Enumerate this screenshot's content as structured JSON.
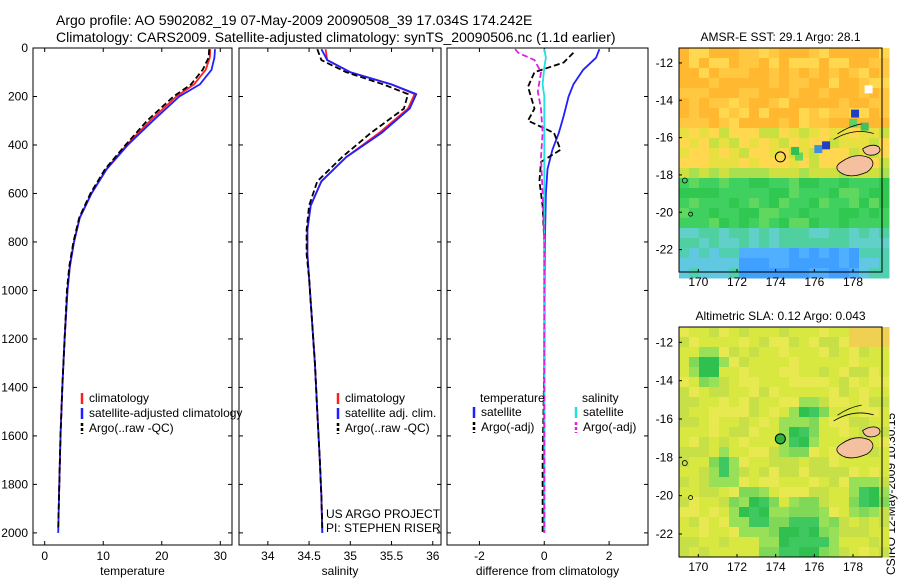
{
  "header": {
    "line1": "Argo profile: AO 5902082_19 07-May-2009 20090508_39 17.034S 174.242E",
    "line2": "Climatology: CARS2009. Satellite-adjusted climatology: synTS_20090506.nc (1.1d earlier)"
  },
  "credit": "CSIRO 12-May-2009 10:30:15",
  "project": {
    "line1": "US ARGO PROJECT",
    "line2": "PI: STEPHEN RISER"
  },
  "colors": {
    "climatology": "#ff2020",
    "satellite": "#1f1fff",
    "argo": "#000000",
    "sat_salinity": "#20e0e0",
    "argo_salinity": "#e020e0"
  },
  "chart_data": [
    {
      "type": "line",
      "id": "temperature",
      "xlabel": "temperature",
      "ylabel": "",
      "xlim": [
        -2,
        32
      ],
      "ylim": [
        2050,
        0
      ],
      "xticks": [
        0,
        10,
        20,
        30
      ],
      "yticks": [
        0,
        200,
        400,
        600,
        800,
        1000,
        1200,
        1400,
        1600,
        1800,
        2000
      ],
      "series": [
        {
          "name": "climatology",
          "color": "#ff2020",
          "dash": "",
          "points": [
            [
              28.3,
              5
            ],
            [
              28.2,
              40
            ],
            [
              27.5,
              90
            ],
            [
              25.5,
              150
            ],
            [
              22.5,
              200
            ],
            [
              18,
              300
            ],
            [
              14,
              400
            ],
            [
              10.5,
              500
            ],
            [
              8,
              600
            ],
            [
              6,
              700
            ],
            [
              5,
              800
            ],
            [
              4.3,
              900
            ],
            [
              3.9,
              1000
            ],
            [
              3.4,
              1200
            ],
            [
              3.0,
              1400
            ],
            [
              2.7,
              1600
            ],
            [
              2.5,
              1800
            ],
            [
              2.4,
              1860
            ]
          ]
        },
        {
          "name": "satellite-adjusted climatology",
          "color": "#1f1fff",
          "dash": "",
          "points": [
            [
              29.1,
              5
            ],
            [
              29.0,
              40
            ],
            [
              28.5,
              90
            ],
            [
              26.5,
              150
            ],
            [
              23,
              200
            ],
            [
              18.5,
              300
            ],
            [
              14.2,
              400
            ],
            [
              10.6,
              500
            ],
            [
              8,
              600
            ],
            [
              6,
              700
            ],
            [
              5,
              800
            ],
            [
              4.3,
              900
            ],
            [
              3.9,
              1000
            ],
            [
              3.4,
              1200
            ],
            [
              3.0,
              1400
            ],
            [
              2.7,
              1600
            ],
            [
              2.5,
              1800
            ],
            [
              2.3,
              2000
            ]
          ]
        },
        {
          "name": "Argo(..raw -QC)",
          "color": "#000000",
          "dash": "6,3",
          "points": [
            [
              28.1,
              5
            ],
            [
              28.0,
              40
            ],
            [
              27.0,
              90
            ],
            [
              25,
              150
            ],
            [
              22,
              200
            ],
            [
              17.5,
              300
            ],
            [
              13.8,
              400
            ],
            [
              10.3,
              500
            ],
            [
              7.8,
              600
            ],
            [
              5.9,
              700
            ],
            [
              4.9,
              800
            ],
            [
              4.2,
              900
            ],
            [
              3.8,
              1000
            ],
            [
              3.4,
              1200
            ],
            [
              3.0,
              1400
            ],
            [
              2.7,
              1600
            ],
            [
              2.5,
              1800
            ],
            [
              2.3,
              1980
            ]
          ]
        }
      ],
      "legend": {
        "placement": "lower-right",
        "labels": [
          "climatology",
          "satellite-adjusted climatology",
          "Argo(..raw -QC)"
        ]
      }
    },
    {
      "type": "line",
      "id": "salinity",
      "xlabel": "salinity",
      "ylabel": "",
      "xlim": [
        33.65,
        36.1
      ],
      "ylim": [
        2050,
        0
      ],
      "xticks": [
        34,
        34.5,
        35,
        35.5,
        36
      ],
      "xtick_labels": [
        "34",
        "34.5",
        "35",
        "35.5",
        "36"
      ],
      "series": [
        {
          "name": "climatology",
          "color": "#ff2020",
          "dash": "",
          "points": [
            [
              34.7,
              5
            ],
            [
              34.72,
              50
            ],
            [
              35.0,
              100
            ],
            [
              35.5,
              150
            ],
            [
              35.78,
              190
            ],
            [
              35.7,
              250
            ],
            [
              35.35,
              350
            ],
            [
              34.95,
              450
            ],
            [
              34.65,
              550
            ],
            [
              34.52,
              650
            ],
            [
              34.48,
              750
            ],
            [
              34.48,
              850
            ],
            [
              34.5,
              950
            ],
            [
              34.53,
              1100
            ],
            [
              34.57,
              1300
            ],
            [
              34.6,
              1500
            ],
            [
              34.63,
              1700
            ],
            [
              34.65,
              1850
            ],
            [
              34.66,
              2000
            ]
          ]
        },
        {
          "name": "satellite adj. clim.",
          "color": "#1f1fff",
          "dash": "",
          "points": [
            [
              34.65,
              5
            ],
            [
              34.72,
              50
            ],
            [
              35.0,
              100
            ],
            [
              35.5,
              150
            ],
            [
              35.8,
              190
            ],
            [
              35.72,
              250
            ],
            [
              35.38,
              350
            ],
            [
              34.95,
              450
            ],
            [
              34.65,
              550
            ],
            [
              34.52,
              650
            ],
            [
              34.48,
              750
            ],
            [
              34.48,
              850
            ],
            [
              34.5,
              950
            ],
            [
              34.53,
              1100
            ],
            [
              34.57,
              1300
            ],
            [
              34.6,
              1500
            ],
            [
              34.63,
              1700
            ],
            [
              34.65,
              1850
            ],
            [
              34.66,
              2000
            ]
          ]
        },
        {
          "name": "Argo(..raw -QC)",
          "color": "#000000",
          "dash": "6,3",
          "points": [
            [
              34.6,
              5
            ],
            [
              34.65,
              50
            ],
            [
              34.95,
              100
            ],
            [
              35.4,
              150
            ],
            [
              35.7,
              190
            ],
            [
              35.65,
              250
            ],
            [
              35.25,
              350
            ],
            [
              34.9,
              450
            ],
            [
              34.6,
              550
            ],
            [
              34.5,
              650
            ],
            [
              34.47,
              750
            ],
            [
              34.47,
              850
            ],
            [
              34.5,
              950
            ],
            [
              34.53,
              1100
            ],
            [
              34.57,
              1300
            ],
            [
              34.6,
              1500
            ],
            [
              34.63,
              1700
            ],
            [
              34.65,
              1850
            ],
            [
              34.66,
              1980
            ]
          ]
        }
      ],
      "legend": {
        "placement": "lower-right",
        "labels": [
          "climatology",
          "satellite adj. clim.",
          "Argo(..raw -QC)"
        ]
      }
    },
    {
      "type": "line",
      "id": "difference",
      "xlabel": "difference from climatology",
      "ylabel": "",
      "xlim": [
        -3,
        3.2
      ],
      "ylim": [
        2050,
        0
      ],
      "xticks": [
        -2,
        0,
        2
      ],
      "series": [
        {
          "name": "temperature satellite",
          "color": "#1f1fff",
          "dash": "",
          "points": [
            [
              1.7,
              5
            ],
            [
              1.6,
              40
            ],
            [
              1.2,
              90
            ],
            [
              0.9,
              150
            ],
            [
              0.75,
              200
            ],
            [
              0.6,
              280
            ],
            [
              0.45,
              350
            ],
            [
              0.25,
              420
            ],
            [
              0.1,
              500
            ],
            [
              0.05,
              600
            ],
            [
              0.02,
              800
            ],
            [
              0.0,
              1200
            ],
            [
              0.0,
              2000
            ]
          ]
        },
        {
          "name": "temperature Argo(-adj)",
          "color": "#000000",
          "dash": "6,3",
          "points": [
            [
              0.9,
              20
            ],
            [
              0.6,
              60
            ],
            [
              -0.3,
              100
            ],
            [
              -0.5,
              160
            ],
            [
              -0.3,
              250
            ],
            [
              -0.5,
              300
            ],
            [
              0.3,
              350
            ],
            [
              0.5,
              420
            ],
            [
              -0.1,
              470
            ],
            [
              -0.15,
              550
            ],
            [
              -0.05,
              650
            ],
            [
              0.0,
              800
            ],
            [
              0.0,
              1300
            ],
            [
              -0.05,
              1700
            ],
            [
              -0.05,
              2000
            ]
          ]
        },
        {
          "name": "salinity satellite",
          "color": "#20e0e0",
          "dash": "",
          "points": [
            [
              0.0,
              5
            ],
            [
              0.05,
              40
            ],
            [
              0.0,
              80
            ],
            [
              -0.05,
              150
            ],
            [
              0.0,
              200
            ],
            [
              0.0,
              300
            ],
            [
              0.0,
              400
            ],
            [
              0.0,
              600
            ],
            [
              0.0,
              800
            ],
            [
              0.0,
              1000
            ],
            [
              0.0,
              2000
            ]
          ]
        },
        {
          "name": "salinity Argo(-adj)",
          "color": "#e020e0",
          "dash": "6,3",
          "points": [
            [
              -0.9,
              5
            ],
            [
              -0.8,
              20
            ],
            [
              -0.3,
              50
            ],
            [
              -0.1,
              100
            ],
            [
              -0.2,
              180
            ],
            [
              -0.1,
              250
            ],
            [
              -0.05,
              350
            ],
            [
              -0.1,
              450
            ],
            [
              -0.05,
              600
            ],
            [
              0.0,
              800
            ],
            [
              0.0,
              1000
            ],
            [
              0.0,
              2000
            ]
          ]
        }
      ],
      "legend": {
        "placement": "lower-center",
        "groups": [
          "temperature",
          "salinity"
        ],
        "labels": [
          "satellite",
          "Argo(-adj)",
          "satellite",
          "Argo(-adj)"
        ]
      }
    },
    {
      "type": "heatmap",
      "id": "sst_map",
      "title": "AMSR-E SST: 29.1 Argo: 28.1",
      "xlim": [
        169,
        179.5
      ],
      "ylim": [
        -23.2,
        -11.2
      ],
      "xticks": [
        170,
        172,
        174,
        176,
        178
      ],
      "yticks": [
        -12,
        -14,
        -16,
        -18,
        -20,
        -22
      ],
      "argo_position": [
        174.242,
        -17.034
      ]
    },
    {
      "type": "heatmap",
      "id": "sla_map",
      "title": "Altimetric SLA: 0.12 Argo: 0.043",
      "xlim": [
        169,
        179.5
      ],
      "ylim": [
        -23.2,
        -11.2
      ],
      "xticks": [
        170,
        172,
        174,
        176,
        178
      ],
      "yticks": [
        -12,
        -14,
        -16,
        -18,
        -20,
        -22
      ],
      "argo_position": [
        174.242,
        -17.034
      ]
    }
  ]
}
